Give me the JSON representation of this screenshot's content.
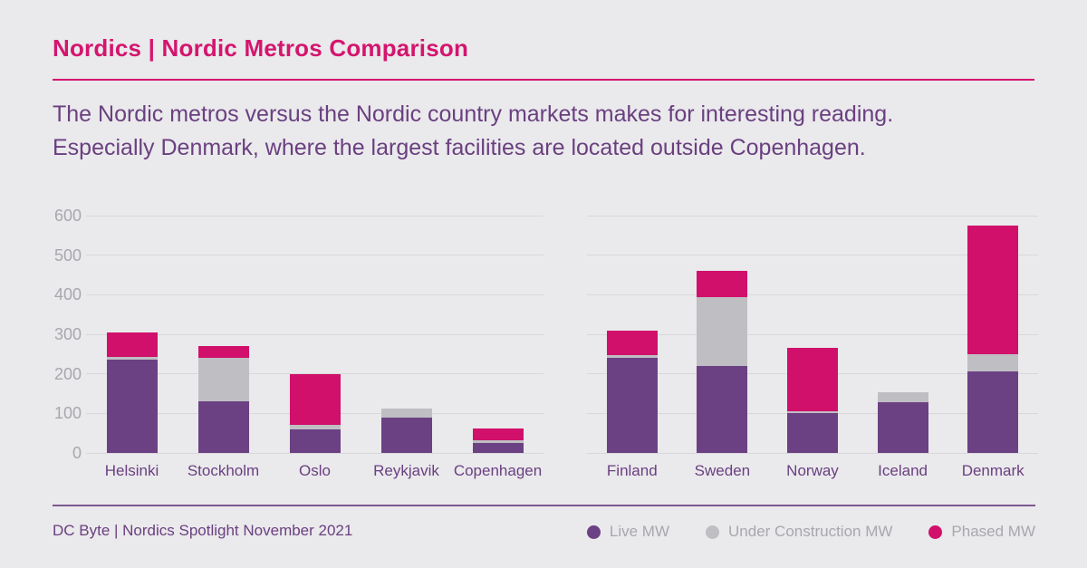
{
  "colors": {
    "background": "#eae9ec",
    "title": "#d4156e",
    "accent_purple": "#6a4080",
    "bar_purple": "#6b4183",
    "bar_gray": "#bfbec3",
    "bar_pink": "#d0106a",
    "gridline": "#d8d7db",
    "tick_text": "#a8a7ad"
  },
  "header": {
    "title": "Nordics | Nordic Metros Comparison"
  },
  "subtitle": {
    "lines": [
      "The Nordic metros versus the Nordic country markets makes for interesting reading.",
      "Especially Denmark, where the largest facilities are located outside Copenhagen."
    ]
  },
  "footer": {
    "source": "DC Byte | Nordics Spotlight November 2021"
  },
  "legend": [
    {
      "label": "Live MW",
      "color": "#6b4183"
    },
    {
      "label": "Under Construction MW",
      "color": "#bfbec3"
    },
    {
      "label": "Phased MW",
      "color": "#d0106a"
    }
  ],
  "chart_data": [
    {
      "type": "bar",
      "stacked": true,
      "name": "nordic-metros",
      "categories": [
        "Helsinki",
        "Stockholm",
        "Oslo",
        "Reykjavik",
        "Copenhagen"
      ],
      "series": [
        {
          "name": "Live MW",
          "color": "#6b4183",
          "values": [
            235,
            130,
            60,
            90,
            25
          ]
        },
        {
          "name": "Under Construction MW",
          "color": "#bfbec3",
          "values": [
            8,
            110,
            10,
            22,
            7
          ]
        },
        {
          "name": "Phased MW",
          "color": "#d0106a",
          "values": [
            62,
            30,
            130,
            0,
            30
          ]
        }
      ],
      "ylabel": "",
      "xlabel": "",
      "ylim": [
        0,
        600
      ],
      "yticks": [
        0,
        100,
        200,
        300,
        400,
        500,
        600
      ],
      "grid": true,
      "legend_position": "bottom-right"
    },
    {
      "type": "bar",
      "stacked": true,
      "name": "nordic-countries",
      "categories": [
        "Finland",
        "Sweden",
        "Norway",
        "Iceland",
        "Denmark"
      ],
      "series": [
        {
          "name": "Live MW",
          "color": "#6b4183",
          "values": [
            240,
            220,
            100,
            128,
            205
          ]
        },
        {
          "name": "Under Construction MW",
          "color": "#bfbec3",
          "values": [
            7,
            175,
            5,
            25,
            45
          ]
        },
        {
          "name": "Phased MW",
          "color": "#d0106a",
          "values": [
            63,
            65,
            160,
            0,
            325
          ]
        }
      ],
      "ylabel": "",
      "xlabel": "",
      "ylim": [
        0,
        600
      ],
      "yticks": [
        0,
        100,
        200,
        300,
        400,
        500,
        600
      ],
      "grid": true,
      "legend_position": "bottom-right"
    }
  ]
}
